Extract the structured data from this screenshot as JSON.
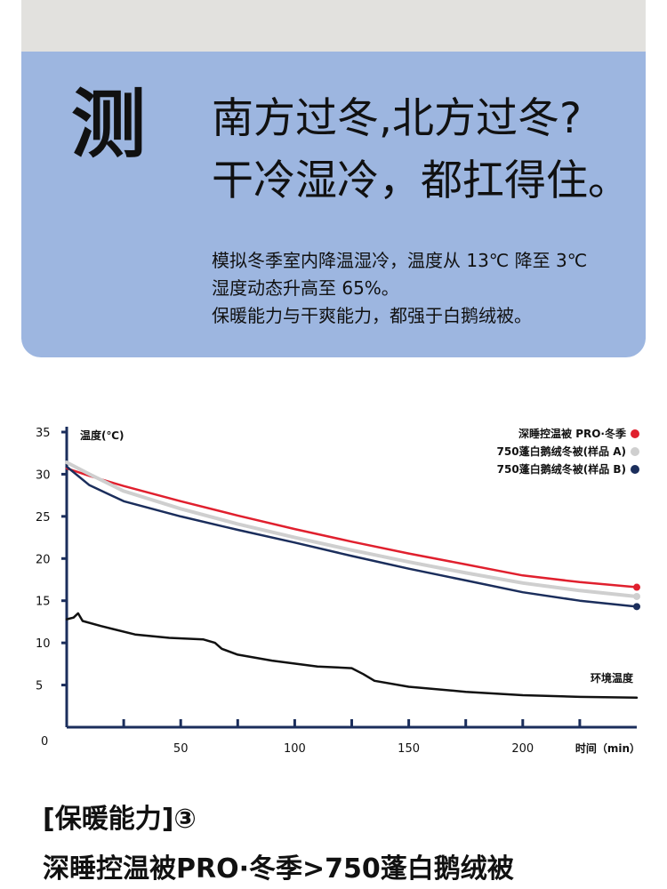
{
  "hero": {
    "char": "测",
    "line1": "南方过冬,北方过冬?",
    "line2": "干冷湿冷，都扛得住。",
    "desc": [
      "模拟冬季室内降温湿冷，温度从 13℃ 降至 3℃",
      "湿度动态升高至 65%。",
      "保暖能力与干爽能力，都强于白鹅绒被。"
    ],
    "bg_color": "#9db6e0"
  },
  "chart_data": {
    "type": "line",
    "ylabel": "温度(℃)",
    "xlabel": "时间（min）",
    "xlim": [
      0,
      250
    ],
    "ylim": [
      0,
      35
    ],
    "x_ticks": [
      50,
      100,
      150,
      200
    ],
    "y_ticks": [
      5,
      10,
      15,
      20,
      25,
      30,
      35
    ],
    "origin_label": "0",
    "legend_position": "top-right",
    "series": [
      {
        "name": "深睡控温被 PRO·冬季",
        "color": "#e0202e",
        "end_marker": true,
        "x": [
          0,
          10,
          25,
          50,
          75,
          100,
          125,
          150,
          175,
          200,
          225,
          250
        ],
        "y": [
          30.7,
          29.8,
          28.6,
          26.8,
          25.1,
          23.5,
          22.0,
          20.6,
          19.3,
          18.0,
          17.2,
          16.6
        ]
      },
      {
        "name": "750蓬白鹅绒冬被(样品 A)",
        "color": "#cfcfcf",
        "end_marker": true,
        "x": [
          0,
          10,
          25,
          50,
          75,
          100,
          125,
          150,
          175,
          200,
          225,
          250
        ],
        "y": [
          31.4,
          30.0,
          28.0,
          25.9,
          24.1,
          22.5,
          21.0,
          19.6,
          18.3,
          17.1,
          16.2,
          15.5
        ]
      },
      {
        "name": "750蓬白鹅绒冬被(样品 B)",
        "color": "#1b2e5c",
        "end_marker": true,
        "x": [
          0,
          10,
          25,
          50,
          75,
          100,
          125,
          150,
          175,
          200,
          225,
          250
        ],
        "y": [
          30.9,
          28.7,
          26.8,
          25.0,
          23.4,
          21.9,
          20.3,
          18.8,
          17.4,
          16.0,
          15.0,
          14.3
        ]
      },
      {
        "name": "环境温度",
        "color": "#111111",
        "end_marker": false,
        "label_inline": true,
        "x": [
          0,
          3,
          5,
          7,
          15,
          30,
          45,
          60,
          65,
          68,
          75,
          90,
          110,
          125,
          130,
          135,
          150,
          175,
          200,
          225,
          250
        ],
        "y": [
          12.8,
          13.0,
          13.5,
          12.6,
          12.0,
          11.0,
          10.6,
          10.4,
          10.0,
          9.3,
          8.6,
          7.9,
          7.2,
          7.0,
          6.3,
          5.5,
          4.8,
          4.2,
          3.8,
          3.6,
          3.5
        ]
      }
    ]
  },
  "footer": {
    "title": "[保暖能力]③",
    "subtitle": "深睡控温被PRO·冬季>750蓬白鹅绒被"
  }
}
